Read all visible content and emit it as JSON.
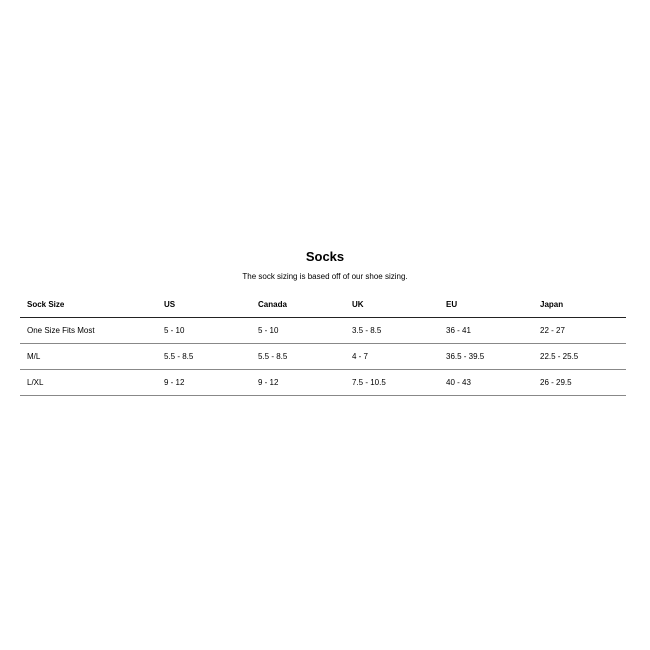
{
  "title": "Socks",
  "subtitle": "The sock sizing is based off of our shoe sizing.",
  "table": {
    "headers": [
      "Sock Size",
      "US",
      "Canada",
      "UK",
      "EU",
      "Japan"
    ],
    "rows": [
      [
        "One Size Fits Most",
        "5 - 10",
        "5 - 10",
        "3.5 - 8.5",
        "36 - 41",
        "22 - 27"
      ],
      [
        "M/L",
        "5.5 - 8.5",
        "5.5 - 8.5",
        "4 - 7",
        "36.5 - 39.5",
        "22.5 - 25.5"
      ],
      [
        "L/XL",
        "9 - 12",
        "9 - 12",
        "7.5 - 10.5",
        "40 - 43",
        "26 - 29.5"
      ]
    ]
  }
}
